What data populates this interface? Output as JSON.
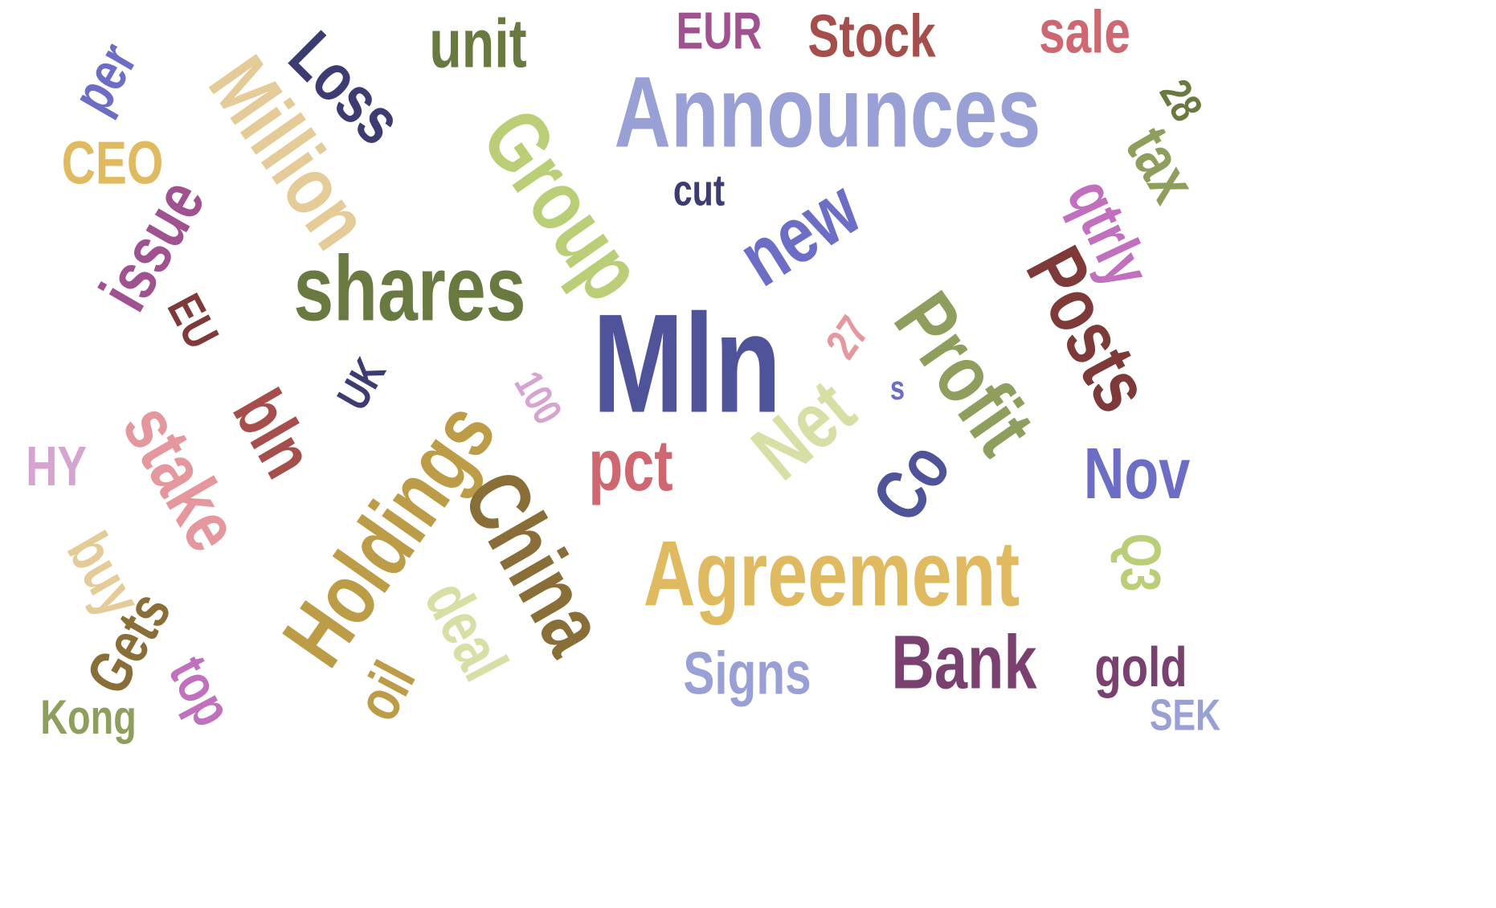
{
  "words": [
    {
      "text": "Announces",
      "color": "#99A0D6"
    },
    {
      "text": "Mln",
      "color": "#4F539A"
    },
    {
      "text": "Agreement",
      "color": "#E0BA60"
    },
    {
      "text": "Group",
      "color": "#BACE78"
    },
    {
      "text": "shares",
      "color": "#687A40"
    },
    {
      "text": "Million",
      "color": "#E4CB98"
    },
    {
      "text": "Holdings",
      "color": "#BD9C48"
    },
    {
      "text": "China",
      "color": "#8A6E38"
    },
    {
      "text": "Profit",
      "color": "#8E9E5C"
    },
    {
      "text": "Posts",
      "color": "#7E3A38"
    },
    {
      "text": "Loss",
      "color": "#3C3C72"
    },
    {
      "text": "new",
      "color": "#6C6EC6"
    },
    {
      "text": "Net",
      "color": "#D8DEA4"
    },
    {
      "text": "stake",
      "color": "#E4989E"
    },
    {
      "text": "Bank",
      "color": "#7A4070"
    },
    {
      "text": "Stock",
      "color": "#A54E4C"
    },
    {
      "text": "issue",
      "color": "#A05290"
    },
    {
      "text": "Signs",
      "color": "#99A0D6"
    },
    {
      "text": "bln",
      "color": "#A54E4C"
    },
    {
      "text": "pct",
      "color": "#CE6770"
    },
    {
      "text": "Nov",
      "color": "#6C6EC6"
    },
    {
      "text": "Co",
      "color": "#4F539A"
    },
    {
      "text": "unit",
      "color": "#687A40"
    },
    {
      "text": "sale",
      "color": "#CE6770"
    },
    {
      "text": "EUR",
      "color": "#A05290"
    },
    {
      "text": "CEO",
      "color": "#E0BA60"
    },
    {
      "text": "per",
      "color": "#6C6EC6"
    },
    {
      "text": "tax",
      "color": "#8E9E5C"
    },
    {
      "text": "qtrly",
      "color": "#C070BC"
    },
    {
      "text": "deal",
      "color": "#D8DEA4"
    },
    {
      "text": "Gets",
      "color": "#8A6E38"
    },
    {
      "text": "buy",
      "color": "#E4CB98"
    },
    {
      "text": "oil",
      "color": "#BD9C48"
    },
    {
      "text": "top",
      "color": "#C070BC"
    },
    {
      "text": "Q3",
      "color": "#BACE78"
    },
    {
      "text": "gold",
      "color": "#7A4070"
    },
    {
      "text": "HY",
      "color": "#D6A4D0"
    },
    {
      "text": "EU",
      "color": "#7E3A38"
    },
    {
      "text": "UK",
      "color": "#3C3C72"
    },
    {
      "text": "cut",
      "color": "#3C3C72"
    },
    {
      "text": "Kong",
      "color": "#8E9E5C"
    },
    {
      "text": "SEK",
      "color": "#99A0D6"
    },
    {
      "text": "28",
      "color": "#687A40"
    },
    {
      "text": "27",
      "color": "#E4989E"
    },
    {
      "text": "100",
      "color": "#D6A4D0"
    },
    {
      "text": "s",
      "color": "#6C6EC6"
    }
  ]
}
